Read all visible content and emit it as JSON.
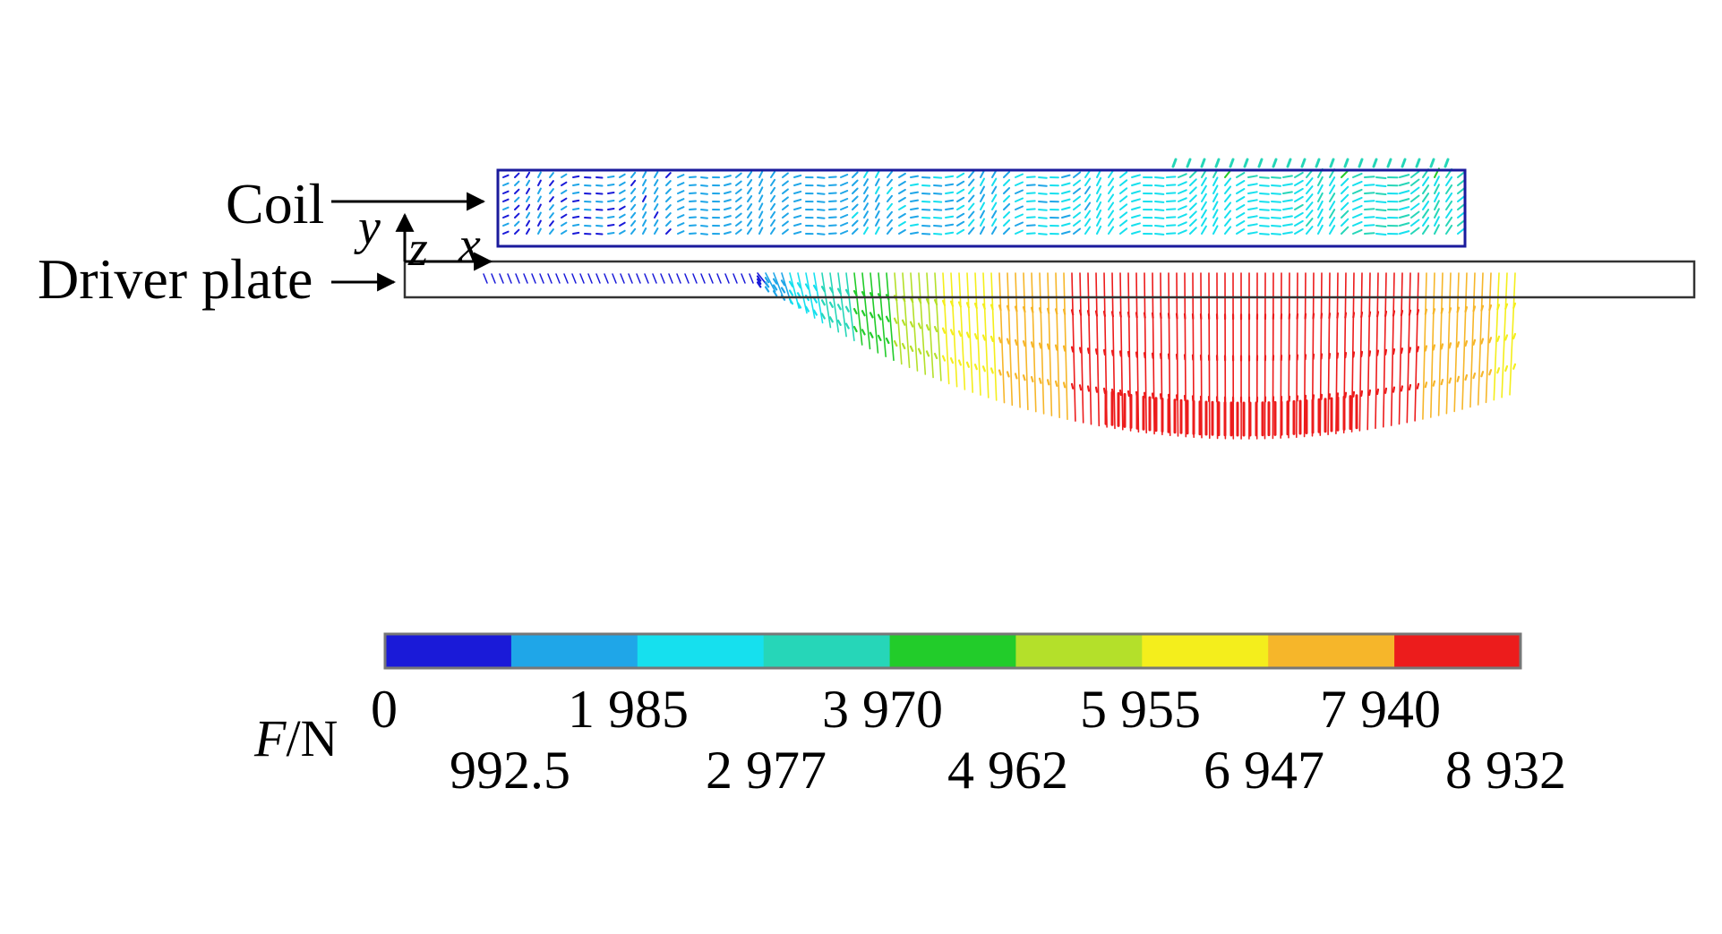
{
  "labels": {
    "coil": "Coil",
    "driver_plate": "Driver plate"
  },
  "axes": {
    "y": "y",
    "z": "z",
    "x": "x"
  },
  "colorbar": {
    "quantity": "F",
    "unit": "/N",
    "min": 0,
    "max": 8932,
    "ticks_upper": [
      "0",
      "1 985",
      "3 970",
      "5 955",
      "7 940"
    ],
    "ticks_lower": [
      "992.5",
      "2 977",
      "4 962",
      "6 947",
      "8 932"
    ],
    "colors": [
      "#1a1ad8",
      "#1fa6e8",
      "#16e0ee",
      "#26d6b8",
      "#22cc2a",
      "#b4e02a",
      "#f4ee1c",
      "#f6b62a",
      "#ec1c1c"
    ]
  }
}
